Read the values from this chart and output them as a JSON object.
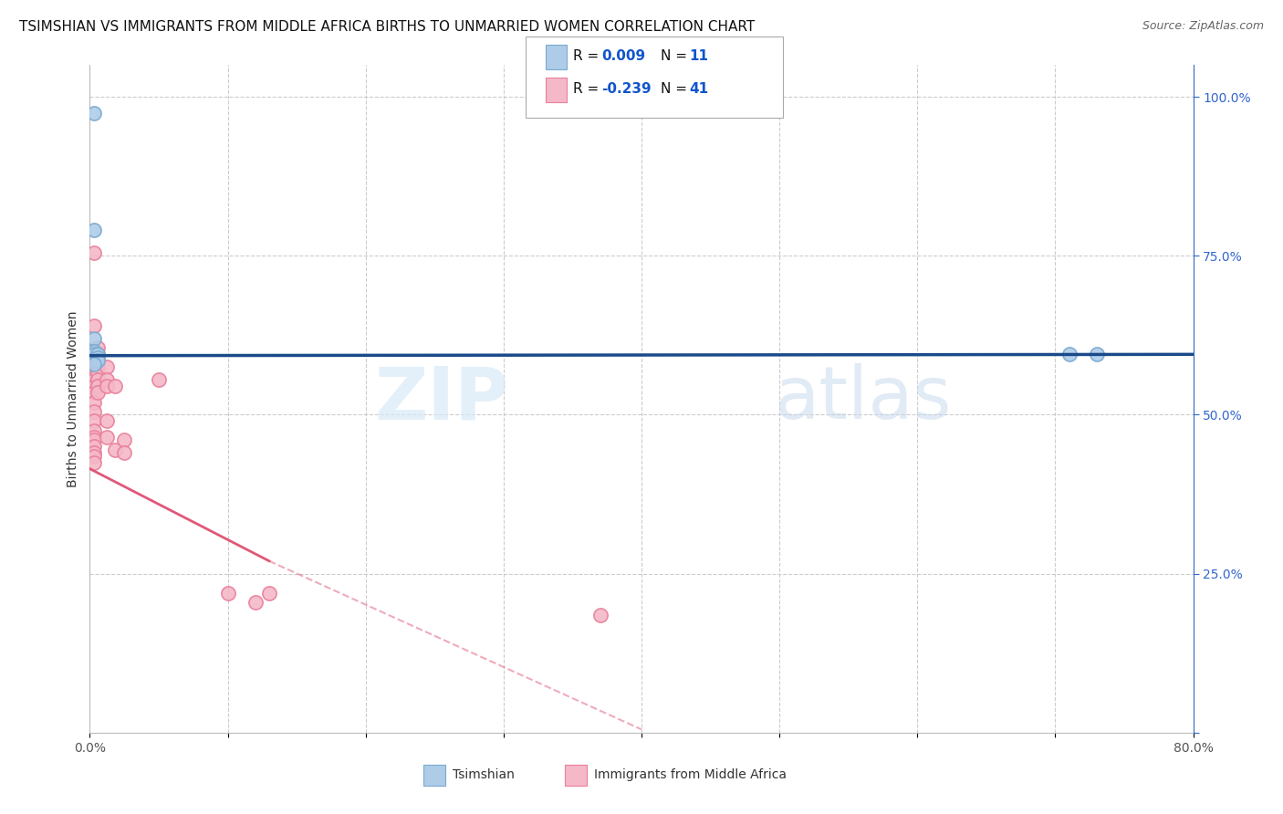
{
  "title": "TSIMSHIAN VS IMMIGRANTS FROM MIDDLE AFRICA BIRTHS TO UNMARRIED WOMEN CORRELATION CHART",
  "source": "Source: ZipAtlas.com",
  "ylabel": "Births to Unmarried Women",
  "xlim": [
    0.0,
    0.8
  ],
  "ylim": [
    0.0,
    1.05
  ],
  "yticks_right": [
    0.0,
    0.25,
    0.5,
    0.75,
    1.0
  ],
  "yticklabels_right": [
    "",
    "25.0%",
    "50.0%",
    "75.0%",
    "100.0%"
  ],
  "blue_color": "#aecce8",
  "blue_edge": "#7aaad0",
  "pink_color": "#f5b8c8",
  "pink_edge": "#e8809a",
  "blue_line_color": "#1a4a8a",
  "pink_line_color": "#e05878",
  "legend_R1": "R = ",
  "legend_V1": "0.009",
  "legend_N1_label": "N = ",
  "legend_N1": "11",
  "legend_R2": "R = ",
  "legend_V2": "-0.239",
  "legend_N2_label": "N = ",
  "legend_N2": "41",
  "legend_text_color": "#1155cc",
  "background_color": "#ffffff",
  "grid_color": "#cccccc",
  "watermark_zip": "ZIP",
  "watermark_atlas": "atlas",
  "tsimshian_x": [
    0.003,
    0.003,
    0.003,
    0.003,
    0.003,
    0.006,
    0.006,
    0.006,
    0.003,
    0.71,
    0.73
  ],
  "tsimshian_y": [
    0.975,
    0.79,
    0.62,
    0.6,
    0.595,
    0.595,
    0.59,
    0.585,
    0.58,
    0.595,
    0.595
  ],
  "immigrants_x": [
    0.003,
    0.003,
    0.003,
    0.003,
    0.003,
    0.003,
    0.003,
    0.003,
    0.003,
    0.003,
    0.003,
    0.003,
    0.003,
    0.003,
    0.003,
    0.003,
    0.003,
    0.003,
    0.003,
    0.003,
    0.006,
    0.006,
    0.006,
    0.006,
    0.006,
    0.006,
    0.006,
    0.012,
    0.012,
    0.012,
    0.012,
    0.012,
    0.018,
    0.018,
    0.025,
    0.025,
    0.05,
    0.1,
    0.12,
    0.13,
    0.37
  ],
  "immigrants_y": [
    0.755,
    0.64,
    0.6,
    0.58,
    0.575,
    0.565,
    0.56,
    0.555,
    0.545,
    0.535,
    0.52,
    0.505,
    0.49,
    0.475,
    0.465,
    0.46,
    0.45,
    0.44,
    0.435,
    0.425,
    0.605,
    0.595,
    0.575,
    0.565,
    0.555,
    0.545,
    0.535,
    0.575,
    0.555,
    0.545,
    0.49,
    0.465,
    0.545,
    0.445,
    0.46,
    0.44,
    0.555,
    0.22,
    0.205,
    0.22,
    0.185
  ],
  "title_fontsize": 11,
  "axis_fontsize": 10,
  "tick_fontsize": 10,
  "marker_size": 120
}
